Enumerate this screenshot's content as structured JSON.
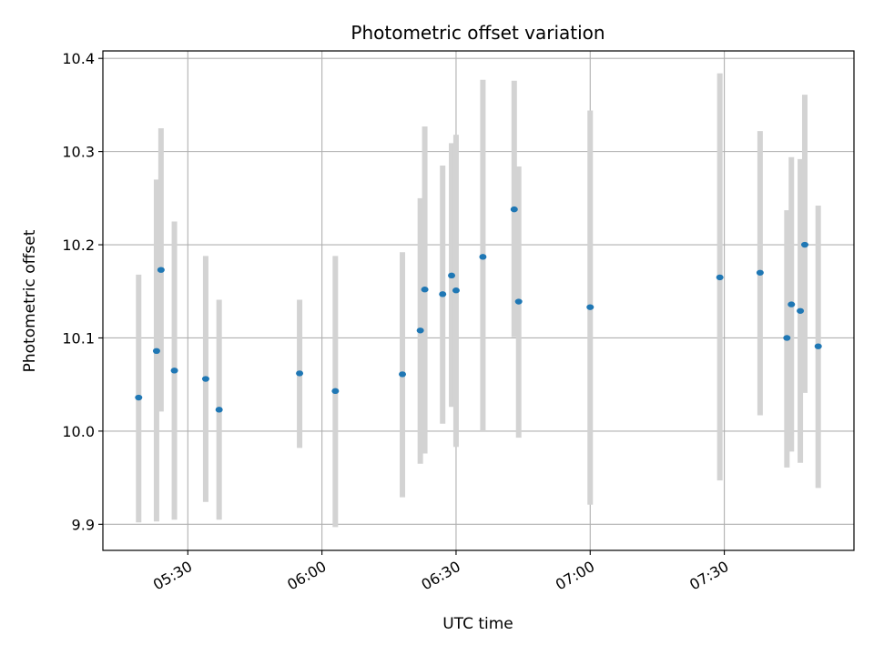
{
  "chart_data": {
    "type": "scatter",
    "title": "Photometric offset variation",
    "xlabel": "UTC time",
    "ylabel": "Photometric offset",
    "x_ticks": [
      "05:30",
      "06:00",
      "06:30",
      "07:00",
      "07:30"
    ],
    "y_ticks": [
      "9.9",
      "10.0",
      "10.1",
      "10.2",
      "10.3",
      "10.4"
    ],
    "xlim": [
      "05:11",
      "07:59"
    ],
    "ylim": [
      9.872,
      10.408
    ],
    "grid": true,
    "colors": {
      "point": "#1f77b4",
      "errorbar": "#d3d3d3",
      "grid": "#b0b0b0"
    },
    "series": [
      {
        "points": [
          {
            "x": "05:19",
            "y": 10.036,
            "lo": 9.902,
            "hi": 10.168
          },
          {
            "x": "05:23",
            "y": 10.086,
            "lo": 9.903,
            "hi": 10.27
          },
          {
            "x": "05:24",
            "y": 10.173,
            "lo": 10.021,
            "hi": 10.325
          },
          {
            "x": "05:27",
            "y": 10.065,
            "lo": 9.905,
            "hi": 10.225
          },
          {
            "x": "05:34",
            "y": 10.056,
            "lo": 9.924,
            "hi": 10.188
          },
          {
            "x": "05:37",
            "y": 10.023,
            "lo": 9.905,
            "hi": 10.141
          },
          {
            "x": "05:55",
            "y": 10.062,
            "lo": 9.982,
            "hi": 10.141
          },
          {
            "x": "06:03",
            "y": 10.043,
            "lo": 9.897,
            "hi": 10.188
          },
          {
            "x": "06:18",
            "y": 10.061,
            "lo": 9.929,
            "hi": 10.192
          },
          {
            "x": "06:22",
            "y": 10.108,
            "lo": 9.965,
            "hi": 10.25
          },
          {
            "x": "06:23",
            "y": 10.152,
            "lo": 9.976,
            "hi": 10.327
          },
          {
            "x": "06:27",
            "y": 10.147,
            "lo": 10.008,
            "hi": 10.285
          },
          {
            "x": "06:29",
            "y": 10.167,
            "lo": 10.026,
            "hi": 10.309
          },
          {
            "x": "06:30",
            "y": 10.151,
            "lo": 9.983,
            "hi": 10.318
          },
          {
            "x": "06:36",
            "y": 10.187,
            "lo": 9.999,
            "hi": 10.377
          },
          {
            "x": "06:43",
            "y": 10.238,
            "lo": 10.101,
            "hi": 10.376
          },
          {
            "x": "06:44",
            "y": 10.139,
            "lo": 9.993,
            "hi": 10.284
          },
          {
            "x": "07:00",
            "y": 10.133,
            "lo": 9.921,
            "hi": 10.344
          },
          {
            "x": "07:29",
            "y": 10.165,
            "lo": 9.947,
            "hi": 10.384
          },
          {
            "x": "07:38",
            "y": 10.17,
            "lo": 10.017,
            "hi": 10.322
          },
          {
            "x": "07:44",
            "y": 10.1,
            "lo": 9.961,
            "hi": 10.237
          },
          {
            "x": "07:45",
            "y": 10.136,
            "lo": 9.978,
            "hi": 10.294
          },
          {
            "x": "07:47",
            "y": 10.129,
            "lo": 9.966,
            "hi": 10.292
          },
          {
            "x": "07:48",
            "y": 10.2,
            "lo": 10.041,
            "hi": 10.361
          },
          {
            "x": "07:51",
            "y": 10.091,
            "lo": 9.939,
            "hi": 10.242
          }
        ]
      }
    ]
  }
}
